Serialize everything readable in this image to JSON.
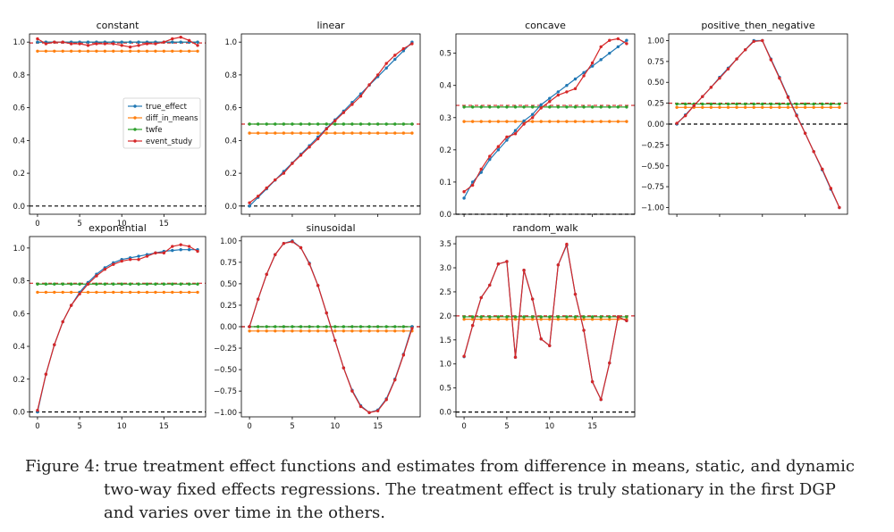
{
  "figure": {
    "caption_label": "Figure 4:",
    "caption_text": "true treatment effect functions and estimates from difference in means, static, and dynamic two-way fixed effects regressions. The treatment effect is truly stationary in the first DGP and varies over time in the others."
  },
  "colors": {
    "true_effect": "#1f77b4",
    "diff_in_means": "#ff7f0e",
    "twfe": "#2ca02c",
    "event_study": "#d62728"
  },
  "legend": [
    "true_effect",
    "diff_in_means",
    "twfe",
    "event_study"
  ],
  "chart_data": [
    {
      "type": "line",
      "title": "constant",
      "x": [
        0,
        1,
        2,
        3,
        4,
        5,
        6,
        7,
        8,
        9,
        10,
        11,
        12,
        13,
        14,
        15,
        16,
        17,
        18,
        19
      ],
      "xticks": [
        0,
        5,
        10,
        15
      ],
      "ylim": [
        -0.05,
        1.05
      ],
      "yticks": [
        "0.0",
        "0.2",
        "0.4",
        "0.6",
        "0.8",
        "1.0"
      ],
      "legend_position": "center-right",
      "hlines": [
        {
          "y": 0.0,
          "style": "black-dashed"
        },
        {
          "y": 0.995,
          "style": "red-dashed"
        }
      ],
      "series": [
        {
          "name": "true_effect",
          "values": [
            1,
            1,
            1,
            1,
            1,
            1,
            1,
            1,
            1,
            1,
            1,
            1,
            1,
            1,
            1,
            1,
            1,
            1,
            1,
            1
          ]
        },
        {
          "name": "diff_in_means",
          "values": [
            0.945,
            0.945,
            0.945,
            0.945,
            0.945,
            0.945,
            0.945,
            0.945,
            0.945,
            0.945,
            0.945,
            0.945,
            0.945,
            0.945,
            0.945,
            0.945,
            0.945,
            0.945,
            0.945,
            0.945
          ]
        },
        {
          "name": "twfe",
          "values": [
            1.0,
            1.0,
            1.0,
            1.0,
            1.0,
            1.0,
            1.0,
            1.0,
            1.0,
            1.0,
            1.0,
            1.0,
            1.0,
            1.0,
            1.0,
            1.0,
            1.0,
            1.0,
            1.0,
            1.0
          ]
        },
        {
          "name": "event_study",
          "values": [
            1.02,
            0.99,
            1.0,
            1.0,
            0.99,
            0.99,
            0.98,
            0.99,
            0.99,
            0.99,
            0.98,
            0.97,
            0.98,
            0.99,
            0.99,
            1.0,
            1.02,
            1.03,
            1.01,
            0.98
          ]
        }
      ]
    },
    {
      "type": "line",
      "title": "linear",
      "x": [
        0,
        1,
        2,
        3,
        4,
        5,
        6,
        7,
        8,
        9,
        10,
        11,
        12,
        13,
        14,
        15,
        16,
        17,
        18,
        19
      ],
      "xticks": [],
      "ylim": [
        -0.05,
        1.05
      ],
      "yticks": [
        "0.0",
        "0.2",
        "0.4",
        "0.6",
        "0.8",
        "1.0"
      ],
      "hlines": [
        {
          "y": 0.0,
          "style": "black-dashed"
        },
        {
          "y": 0.5,
          "style": "red-dashed"
        }
      ],
      "series": [
        {
          "name": "true_effect",
          "values": [
            0.0,
            0.053,
            0.105,
            0.158,
            0.211,
            0.263,
            0.316,
            0.368,
            0.421,
            0.474,
            0.526,
            0.579,
            0.632,
            0.684,
            0.737,
            0.789,
            0.842,
            0.895,
            0.947,
            1.0
          ]
        },
        {
          "name": "diff_in_means",
          "values": [
            0.445,
            0.445,
            0.445,
            0.445,
            0.445,
            0.445,
            0.445,
            0.445,
            0.445,
            0.445,
            0.445,
            0.445,
            0.445,
            0.445,
            0.445,
            0.445,
            0.445,
            0.445,
            0.445,
            0.445
          ]
        },
        {
          "name": "twfe",
          "values": [
            0.5,
            0.5,
            0.5,
            0.5,
            0.5,
            0.5,
            0.5,
            0.5,
            0.5,
            0.5,
            0.5,
            0.5,
            0.5,
            0.5,
            0.5,
            0.5,
            0.5,
            0.5,
            0.5,
            0.5
          ]
        },
        {
          "name": "event_study",
          "values": [
            0.02,
            0.06,
            0.11,
            0.16,
            0.2,
            0.26,
            0.31,
            0.36,
            0.41,
            0.47,
            0.52,
            0.57,
            0.62,
            0.67,
            0.74,
            0.8,
            0.87,
            0.92,
            0.96,
            0.99
          ]
        }
      ]
    },
    {
      "type": "line",
      "title": "concave",
      "x": [
        0,
        1,
        2,
        3,
        4,
        5,
        6,
        7,
        8,
        9,
        10,
        11,
        12,
        13,
        14,
        15,
        16,
        17,
        18,
        19
      ],
      "xticks": [],
      "ylim": [
        0.0,
        0.56
      ],
      "yticks": [
        "0.0",
        "0.1",
        "0.2",
        "0.3",
        "0.4",
        "0.5"
      ],
      "hlines": [
        {
          "y": 0.0,
          "style": "black-dashed"
        },
        {
          "y": 0.338,
          "style": "red-dashed"
        }
      ],
      "series": [
        {
          "name": "true_effect",
          "values": [
            0.05,
            0.1,
            0.13,
            0.17,
            0.2,
            0.23,
            0.26,
            0.29,
            0.31,
            0.34,
            0.36,
            0.38,
            0.4,
            0.42,
            0.44,
            0.46,
            0.48,
            0.5,
            0.52,
            0.54
          ]
        },
        {
          "name": "diff_in_means",
          "values": [
            0.288,
            0.288,
            0.288,
            0.288,
            0.288,
            0.288,
            0.288,
            0.288,
            0.288,
            0.288,
            0.288,
            0.288,
            0.288,
            0.288,
            0.288,
            0.288,
            0.288,
            0.288,
            0.288,
            0.288
          ]
        },
        {
          "name": "twfe",
          "values": [
            0.333,
            0.333,
            0.333,
            0.333,
            0.333,
            0.333,
            0.333,
            0.333,
            0.333,
            0.333,
            0.333,
            0.333,
            0.333,
            0.333,
            0.333,
            0.333,
            0.333,
            0.333,
            0.333,
            0.333
          ]
        },
        {
          "name": "event_study",
          "values": [
            0.07,
            0.09,
            0.14,
            0.18,
            0.21,
            0.24,
            0.25,
            0.28,
            0.3,
            0.33,
            0.35,
            0.37,
            0.38,
            0.39,
            0.43,
            0.47,
            0.52,
            0.54,
            0.545,
            0.53
          ]
        }
      ]
    },
    {
      "type": "line",
      "title": "positive_then_negative",
      "x": [
        0,
        1,
        2,
        3,
        4,
        5,
        6,
        7,
        8,
        9,
        10,
        11,
        12,
        13,
        14,
        15,
        16,
        17,
        18,
        19
      ],
      "xticks": [],
      "ylim": [
        -1.08,
        1.08
      ],
      "yticks": [
        "−1.00",
        "−0.75",
        "−0.50",
        "−0.25",
        "0.00",
        "0.25",
        "0.50",
        "0.75",
        "1.00"
      ],
      "hlines": [
        {
          "y": 0.0,
          "style": "black-dashed"
        },
        {
          "y": 0.25,
          "style": "red-dashed"
        }
      ],
      "series": [
        {
          "name": "true_effect",
          "values": [
            0.0,
            0.11,
            0.22,
            0.33,
            0.44,
            0.56,
            0.67,
            0.78,
            0.89,
            1.0,
            1.0,
            0.78,
            0.56,
            0.33,
            0.11,
            -0.11,
            -0.33,
            -0.55,
            -0.78,
            -1.0
          ]
        },
        {
          "name": "diff_in_means",
          "values": [
            0.2,
            0.2,
            0.2,
            0.2,
            0.2,
            0.2,
            0.2,
            0.2,
            0.2,
            0.2,
            0.2,
            0.2,
            0.2,
            0.2,
            0.2,
            0.2,
            0.2,
            0.2,
            0.2,
            0.2
          ]
        },
        {
          "name": "twfe",
          "values": [
            0.24,
            0.24,
            0.24,
            0.24,
            0.24,
            0.24,
            0.24,
            0.24,
            0.24,
            0.24,
            0.24,
            0.24,
            0.24,
            0.24,
            0.24,
            0.24,
            0.24,
            0.24,
            0.24,
            0.24
          ]
        },
        {
          "name": "event_study",
          "values": [
            0.01,
            0.1,
            0.22,
            0.33,
            0.44,
            0.55,
            0.66,
            0.78,
            0.89,
            0.99,
            1.0,
            0.77,
            0.55,
            0.32,
            0.1,
            -0.11,
            -0.33,
            -0.54,
            -0.77,
            -1.0
          ]
        }
      ]
    },
    {
      "type": "line",
      "title": "exponential",
      "x": [
        0,
        1,
        2,
        3,
        4,
        5,
        6,
        7,
        8,
        9,
        10,
        11,
        12,
        13,
        14,
        15,
        16,
        17,
        18,
        19
      ],
      "xticks": [
        0,
        5,
        10,
        15
      ],
      "ylim": [
        -0.03,
        1.07
      ],
      "yticks": [
        "0.0",
        "0.2",
        "0.4",
        "0.6",
        "0.8",
        "1.0"
      ],
      "hlines": [
        {
          "y": 0.0,
          "style": "black-dashed"
        },
        {
          "y": 0.785,
          "style": "red-dashed"
        }
      ],
      "series": [
        {
          "name": "true_effect",
          "values": [
            0.0,
            0.23,
            0.41,
            0.55,
            0.65,
            0.73,
            0.79,
            0.84,
            0.88,
            0.91,
            0.93,
            0.94,
            0.95,
            0.96,
            0.97,
            0.98,
            0.985,
            0.99,
            0.99,
            0.99
          ]
        },
        {
          "name": "diff_in_means",
          "values": [
            0.73,
            0.73,
            0.73,
            0.73,
            0.73,
            0.73,
            0.73,
            0.73,
            0.73,
            0.73,
            0.73,
            0.73,
            0.73,
            0.73,
            0.73,
            0.73,
            0.73,
            0.73,
            0.73,
            0.73
          ]
        },
        {
          "name": "twfe",
          "values": [
            0.78,
            0.78,
            0.78,
            0.78,
            0.78,
            0.78,
            0.78,
            0.78,
            0.78,
            0.78,
            0.78,
            0.78,
            0.78,
            0.78,
            0.78,
            0.78,
            0.78,
            0.78,
            0.78,
            0.78
          ]
        },
        {
          "name": "event_study",
          "values": [
            0.01,
            0.23,
            0.41,
            0.55,
            0.65,
            0.72,
            0.78,
            0.83,
            0.87,
            0.9,
            0.92,
            0.93,
            0.93,
            0.95,
            0.97,
            0.97,
            1.01,
            1.02,
            1.01,
            0.98
          ]
        }
      ]
    },
    {
      "type": "line",
      "title": "sinusoidal",
      "x": [
        0,
        1,
        2,
        3,
        4,
        5,
        6,
        7,
        8,
        9,
        10,
        11,
        12,
        13,
        14,
        15,
        16,
        17,
        18,
        19
      ],
      "xticks": [
        0,
        5,
        10,
        15
      ],
      "ylim": [
        -1.05,
        1.05
      ],
      "yticks": [
        "−1.00",
        "−0.75",
        "−0.50",
        "−0.25",
        "0.00",
        "0.25",
        "0.50",
        "0.75",
        "1.00"
      ],
      "hlines": [
        {
          "y": 0.0,
          "style": "black-dashed"
        },
        {
          "y": 0.0,
          "style": "red-dashed"
        }
      ],
      "series": [
        {
          "name": "true_effect",
          "values": [
            0.0,
            0.32,
            0.61,
            0.84,
            0.97,
            1.0,
            0.92,
            0.74,
            0.48,
            0.16,
            -0.16,
            -0.48,
            -0.74,
            -0.92,
            -1.0,
            -0.97,
            -0.84,
            -0.61,
            -0.32,
            0.0
          ]
        },
        {
          "name": "diff_in_means",
          "values": [
            -0.05,
            -0.05,
            -0.05,
            -0.05,
            -0.05,
            -0.05,
            -0.05,
            -0.05,
            -0.05,
            -0.05,
            -0.05,
            -0.05,
            -0.05,
            -0.05,
            -0.05,
            -0.05,
            -0.05,
            -0.05,
            -0.05,
            -0.05
          ]
        },
        {
          "name": "twfe",
          "values": [
            0.0,
            0.0,
            0.0,
            0.0,
            0.0,
            0.0,
            0.0,
            0.0,
            0.0,
            0.0,
            0.0,
            0.0,
            0.0,
            0.0,
            0.0,
            0.0,
            0.0,
            0.0,
            0.0,
            0.0
          ]
        },
        {
          "name": "event_study",
          "values": [
            0.0,
            0.32,
            0.61,
            0.84,
            0.97,
            0.99,
            0.92,
            0.73,
            0.48,
            0.16,
            -0.16,
            -0.48,
            -0.75,
            -0.93,
            -1.0,
            -0.98,
            -0.85,
            -0.62,
            -0.33,
            -0.02
          ]
        }
      ]
    },
    {
      "type": "line",
      "title": "random_walk",
      "x": [
        0,
        1,
        2,
        3,
        4,
        5,
        6,
        7,
        8,
        9,
        10,
        11,
        12,
        13,
        14,
        15,
        16,
        17,
        18,
        19
      ],
      "xticks": [
        0,
        5,
        10,
        15
      ],
      "ylim": [
        -0.1,
        3.65
      ],
      "yticks": [
        "0.0",
        "0.5",
        "1.0",
        "1.5",
        "2.0",
        "2.5",
        "3.0",
        "3.5"
      ],
      "hlines": [
        {
          "y": 0.0,
          "style": "black-dashed"
        },
        {
          "y": 2.0,
          "style": "red-dashed"
        }
      ],
      "series": [
        {
          "name": "true_effect",
          "values": [
            1.15,
            1.8,
            2.38,
            2.64,
            3.08,
            3.13,
            1.14,
            2.95,
            2.35,
            1.52,
            1.38,
            3.06,
            3.47,
            2.45,
            1.7,
            0.63,
            0.26,
            1.02,
            1.98,
            1.9
          ]
        },
        {
          "name": "diff_in_means",
          "values": [
            1.93,
            1.93,
            1.93,
            1.93,
            1.93,
            1.93,
            1.93,
            1.93,
            1.93,
            1.93,
            1.93,
            1.93,
            1.93,
            1.93,
            1.93,
            1.93,
            1.93,
            1.93,
            1.93,
            1.93
          ]
        },
        {
          "name": "twfe",
          "values": [
            1.98,
            1.98,
            1.98,
            1.98,
            1.98,
            1.98,
            1.98,
            1.98,
            1.98,
            1.98,
            1.98,
            1.98,
            1.98,
            1.98,
            1.98,
            1.98,
            1.98,
            1.98,
            1.98,
            1.98
          ]
        },
        {
          "name": "event_study",
          "values": [
            1.16,
            1.8,
            2.38,
            2.64,
            3.08,
            3.13,
            1.14,
            2.95,
            2.35,
            1.52,
            1.38,
            3.06,
            3.49,
            2.45,
            1.7,
            0.63,
            0.26,
            1.02,
            1.98,
            1.9
          ]
        }
      ]
    }
  ]
}
